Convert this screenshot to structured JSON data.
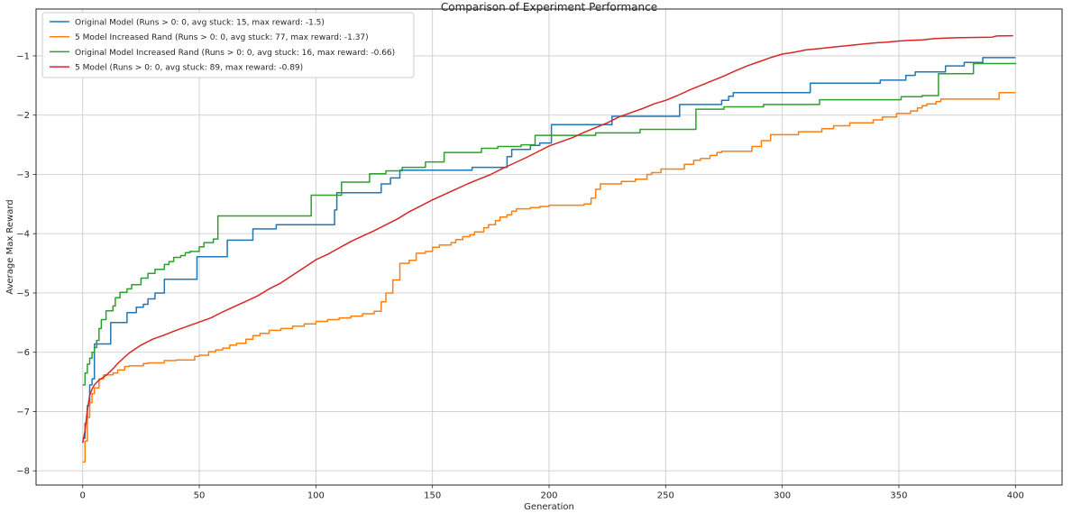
{
  "chart_data": {
    "type": "line",
    "title": "Comparison of Experiment Performance",
    "xlabel": "Generation",
    "ylabel": "Average Max Reward",
    "xlim": [
      -20,
      420
    ],
    "ylim": [
      -8.24,
      -0.21
    ],
    "x_ticks": [
      0,
      50,
      100,
      150,
      200,
      250,
      300,
      350,
      400
    ],
    "y_ticks": [
      -8,
      -7,
      -6,
      -5,
      -4,
      -3,
      -2,
      -1
    ],
    "grid": true,
    "grid_color": "#cdcdcd",
    "spine_color": "#262626",
    "legend_position": "upper left",
    "series": [
      {
        "name": "Original Model",
        "label": "Original Model (Runs > 0: 0, avg stuck: 15, max reward: -1.5)",
        "color": "#1f77b4",
        "style": "step",
        "points": [
          [
            0,
            -7.45
          ],
          [
            1,
            -7.2
          ],
          [
            2,
            -6.9
          ],
          [
            3,
            -6.55
          ],
          [
            4,
            -6.45
          ],
          [
            5,
            -5.86
          ],
          [
            12,
            -5.5
          ],
          [
            19,
            -5.33
          ],
          [
            23,
            -5.24
          ],
          [
            26,
            -5.19
          ],
          [
            28,
            -5.1
          ],
          [
            31,
            -5.0
          ],
          [
            35,
            -4.77
          ],
          [
            49,
            -4.39
          ],
          [
            62,
            -4.11
          ],
          [
            73,
            -3.92
          ],
          [
            83,
            -3.85
          ],
          [
            108,
            -3.6
          ],
          [
            109,
            -3.31
          ],
          [
            128,
            -3.16
          ],
          [
            132,
            -3.06
          ],
          [
            136,
            -2.93
          ],
          [
            167,
            -2.88
          ],
          [
            182,
            -2.7
          ],
          [
            184,
            -2.58
          ],
          [
            192,
            -2.51
          ],
          [
            196,
            -2.47
          ],
          [
            201,
            -2.16
          ],
          [
            227,
            -2.02
          ],
          [
            256,
            -1.82
          ],
          [
            274,
            -1.75
          ],
          [
            277,
            -1.68
          ],
          [
            279,
            -1.62
          ],
          [
            312,
            -1.46
          ],
          [
            342,
            -1.41
          ],
          [
            353,
            -1.33
          ],
          [
            357,
            -1.27
          ],
          [
            370,
            -1.17
          ],
          [
            378,
            -1.11
          ],
          [
            386,
            -1.03
          ],
          [
            400,
            -1.03
          ]
        ]
      },
      {
        "name": "5 Model Increased Rand",
        "label": "5 Model Increased Rand (Runs > 0: 0, avg stuck: 77, max reward: -1.37)",
        "color": "#ff7f0e",
        "style": "step",
        "points": [
          [
            0,
            -7.85
          ],
          [
            1,
            -7.5
          ],
          [
            2,
            -7.1
          ],
          [
            3,
            -6.85
          ],
          [
            4,
            -6.7
          ],
          [
            5,
            -6.6
          ],
          [
            7,
            -6.45
          ],
          [
            9,
            -6.38
          ],
          [
            13,
            -6.35
          ],
          [
            15,
            -6.3
          ],
          [
            18,
            -6.24
          ],
          [
            20,
            -6.23
          ],
          [
            26,
            -6.19
          ],
          [
            28,
            -6.18
          ],
          [
            35,
            -6.14
          ],
          [
            40,
            -6.13
          ],
          [
            48,
            -6.07
          ],
          [
            50,
            -6.05
          ],
          [
            54,
            -5.99
          ],
          [
            57,
            -5.96
          ],
          [
            60,
            -5.93
          ],
          [
            63,
            -5.88
          ],
          [
            66,
            -5.85
          ],
          [
            70,
            -5.78
          ],
          [
            73,
            -5.72
          ],
          [
            76,
            -5.68
          ],
          [
            80,
            -5.63
          ],
          [
            85,
            -5.6
          ],
          [
            90,
            -5.56
          ],
          [
            95,
            -5.52
          ],
          [
            100,
            -5.48
          ],
          [
            105,
            -5.45
          ],
          [
            110,
            -5.42
          ],
          [
            115,
            -5.39
          ],
          [
            120,
            -5.35
          ],
          [
            125,
            -5.31
          ],
          [
            128,
            -5.15
          ],
          [
            130,
            -5.0
          ],
          [
            133,
            -4.78
          ],
          [
            136,
            -4.5
          ],
          [
            140,
            -4.45
          ],
          [
            143,
            -4.33
          ],
          [
            147,
            -4.3
          ],
          [
            150,
            -4.23
          ],
          [
            153,
            -4.19
          ],
          [
            158,
            -4.15
          ],
          [
            160,
            -4.1
          ],
          [
            163,
            -4.05
          ],
          [
            166,
            -4.02
          ],
          [
            168,
            -3.97
          ],
          [
            172,
            -3.9
          ],
          [
            174,
            -3.85
          ],
          [
            177,
            -3.78
          ],
          [
            179,
            -3.72
          ],
          [
            182,
            -3.68
          ],
          [
            184,
            -3.62
          ],
          [
            186,
            -3.58
          ],
          [
            192,
            -3.56
          ],
          [
            196,
            -3.54
          ],
          [
            200,
            -3.52
          ],
          [
            215,
            -3.5
          ],
          [
            218,
            -3.4
          ],
          [
            220,
            -3.25
          ],
          [
            222,
            -3.16
          ],
          [
            231,
            -3.12
          ],
          [
            237,
            -3.08
          ],
          [
            242,
            -3.0
          ],
          [
            244,
            -2.97
          ],
          [
            248,
            -2.91
          ],
          [
            258,
            -2.83
          ],
          [
            262,
            -2.76
          ],
          [
            265,
            -2.73
          ],
          [
            269,
            -2.68
          ],
          [
            272,
            -2.63
          ],
          [
            274,
            -2.61
          ],
          [
            287,
            -2.53
          ],
          [
            291,
            -2.43
          ],
          [
            295,
            -2.33
          ],
          [
            307,
            -2.28
          ],
          [
            317,
            -2.23
          ],
          [
            322,
            -2.18
          ],
          [
            329,
            -2.13
          ],
          [
            339,
            -2.08
          ],
          [
            343,
            -2.03
          ],
          [
            349,
            -1.97
          ],
          [
            355,
            -1.93
          ],
          [
            358,
            -1.88
          ],
          [
            360,
            -1.84
          ],
          [
            362,
            -1.81
          ],
          [
            366,
            -1.77
          ],
          [
            368,
            -1.73
          ],
          [
            393,
            -1.62
          ],
          [
            400,
            -1.62
          ]
        ]
      },
      {
        "name": "Original Model Increased Rand",
        "label": "Original Model Increased Rand (Runs > 0: 0, avg stuck: 16, max reward: -0.66)",
        "color": "#2ca02c",
        "style": "step",
        "points": [
          [
            0,
            -6.55
          ],
          [
            1,
            -6.35
          ],
          [
            2,
            -6.2
          ],
          [
            3,
            -6.1
          ],
          [
            4,
            -6.0
          ],
          [
            5,
            -5.92
          ],
          [
            6,
            -5.8
          ],
          [
            7,
            -5.6
          ],
          [
            8,
            -5.45
          ],
          [
            10,
            -5.3
          ],
          [
            13,
            -5.22
          ],
          [
            14,
            -5.08
          ],
          [
            16,
            -4.99
          ],
          [
            19,
            -4.93
          ],
          [
            21,
            -4.86
          ],
          [
            25,
            -4.75
          ],
          [
            28,
            -4.67
          ],
          [
            31,
            -4.6
          ],
          [
            35,
            -4.52
          ],
          [
            37,
            -4.47
          ],
          [
            39,
            -4.4
          ],
          [
            42,
            -4.37
          ],
          [
            44,
            -4.32
          ],
          [
            46,
            -4.3
          ],
          [
            50,
            -4.22
          ],
          [
            52,
            -4.15
          ],
          [
            56,
            -4.09
          ],
          [
            58,
            -3.7
          ],
          [
            98,
            -3.35
          ],
          [
            111,
            -3.13
          ],
          [
            123,
            -2.99
          ],
          [
            130,
            -2.94
          ],
          [
            137,
            -2.88
          ],
          [
            147,
            -2.79
          ],
          [
            155,
            -2.63
          ],
          [
            171,
            -2.56
          ],
          [
            178,
            -2.53
          ],
          [
            188,
            -2.5
          ],
          [
            194,
            -2.34
          ],
          [
            220,
            -2.3
          ],
          [
            239,
            -2.24
          ],
          [
            263,
            -1.9
          ],
          [
            275,
            -1.86
          ],
          [
            292,
            -1.82
          ],
          [
            316,
            -1.74
          ],
          [
            351,
            -1.69
          ],
          [
            360,
            -1.67
          ],
          [
            367,
            -1.3
          ],
          [
            382,
            -1.13
          ],
          [
            400,
            -1.12
          ]
        ]
      },
      {
        "name": "5 Model",
        "label": "5 Model (Runs > 0: 0, avg stuck: 89, max reward: -0.89)",
        "color": "#d62728",
        "style": "linear",
        "points": [
          [
            0,
            -7.53
          ],
          [
            1,
            -7.32
          ],
          [
            2,
            -6.97
          ],
          [
            3,
            -6.73
          ],
          [
            4,
            -6.62
          ],
          [
            5,
            -6.55
          ],
          [
            7,
            -6.47
          ],
          [
            10,
            -6.39
          ],
          [
            13,
            -6.28
          ],
          [
            15,
            -6.19
          ],
          [
            18,
            -6.08
          ],
          [
            20,
            -6.01
          ],
          [
            25,
            -5.88
          ],
          [
            30,
            -5.78
          ],
          [
            35,
            -5.71
          ],
          [
            40,
            -5.63
          ],
          [
            45,
            -5.56
          ],
          [
            50,
            -5.49
          ],
          [
            55,
            -5.42
          ],
          [
            60,
            -5.32
          ],
          [
            65,
            -5.23
          ],
          [
            70,
            -5.14
          ],
          [
            75,
            -5.05
          ],
          [
            80,
            -4.93
          ],
          [
            85,
            -4.83
          ],
          [
            90,
            -4.7
          ],
          [
            95,
            -4.57
          ],
          [
            100,
            -4.44
          ],
          [
            105,
            -4.35
          ],
          [
            110,
            -4.24
          ],
          [
            115,
            -4.13
          ],
          [
            120,
            -4.04
          ],
          [
            125,
            -3.95
          ],
          [
            130,
            -3.85
          ],
          [
            135,
            -3.75
          ],
          [
            140,
            -3.63
          ],
          [
            145,
            -3.53
          ],
          [
            150,
            -3.43
          ],
          [
            155,
            -3.34
          ],
          [
            160,
            -3.25
          ],
          [
            165,
            -3.16
          ],
          [
            170,
            -3.08
          ],
          [
            175,
            -3.0
          ],
          [
            180,
            -2.9
          ],
          [
            185,
            -2.81
          ],
          [
            190,
            -2.72
          ],
          [
            195,
            -2.62
          ],
          [
            200,
            -2.52
          ],
          [
            205,
            -2.45
          ],
          [
            210,
            -2.38
          ],
          [
            215,
            -2.29
          ],
          [
            220,
            -2.21
          ],
          [
            225,
            -2.13
          ],
          [
            230,
            -2.03
          ],
          [
            235,
            -1.96
          ],
          [
            240,
            -1.89
          ],
          [
            245,
            -1.81
          ],
          [
            250,
            -1.75
          ],
          [
            255,
            -1.67
          ],
          [
            260,
            -1.58
          ],
          [
            265,
            -1.5
          ],
          [
            270,
            -1.42
          ],
          [
            275,
            -1.34
          ],
          [
            280,
            -1.25
          ],
          [
            285,
            -1.17
          ],
          [
            290,
            -1.1
          ],
          [
            295,
            -1.03
          ],
          [
            300,
            -0.97
          ],
          [
            305,
            -0.94
          ],
          [
            310,
            -0.9
          ],
          [
            315,
            -0.88
          ],
          [
            320,
            -0.86
          ],
          [
            325,
            -0.84
          ],
          [
            330,
            -0.82
          ],
          [
            335,
            -0.8
          ],
          [
            340,
            -0.78
          ],
          [
            345,
            -0.77
          ],
          [
            350,
            -0.75
          ],
          [
            355,
            -0.74
          ],
          [
            360,
            -0.73
          ],
          [
            365,
            -0.71
          ],
          [
            370,
            -0.7
          ],
          [
            375,
            -0.695
          ],
          [
            380,
            -0.69
          ],
          [
            390,
            -0.685
          ],
          [
            392,
            -0.665
          ],
          [
            399,
            -0.66
          ]
        ]
      }
    ]
  }
}
